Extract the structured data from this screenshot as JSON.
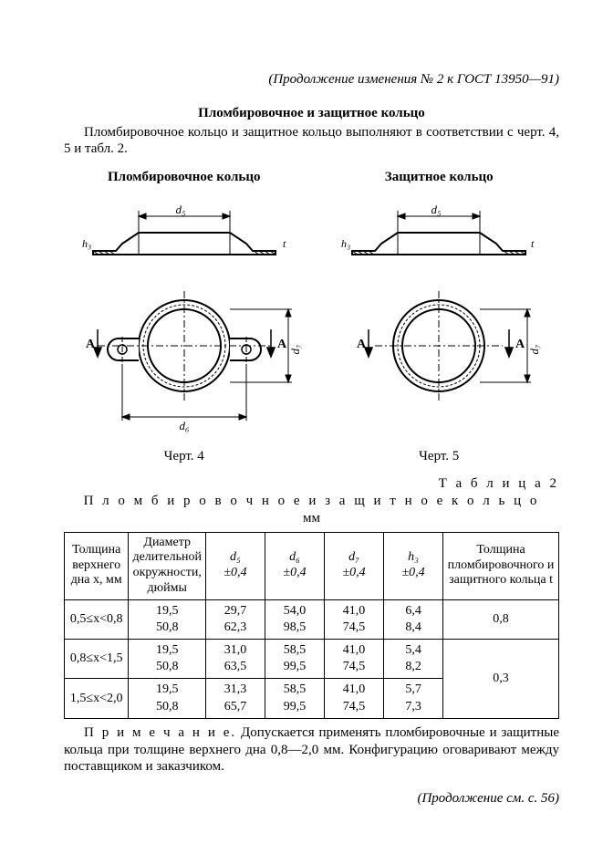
{
  "header_note": "(Продолжение изменения № 2 к ГОСТ 13950—91)",
  "section_title": "Пломбировочное и защитное кольцо",
  "intro": "Пломбировочное кольцо и защитное кольцо выполняют в соответствии с черт. 4, 5 и табл. 2.",
  "diagrams": {
    "left_title": "Пломбировочное кольцо",
    "right_title": "Защитное кольцо",
    "left_caption": "Черт. 4",
    "right_caption": "Черт. 5",
    "dim_d5": "d₅",
    "dim_d6": "d₆",
    "dim_d7": "d₇",
    "dim_h3": "h₃",
    "dim_t": "t",
    "label_A": "А",
    "colors": {
      "stroke": "#000000",
      "fill_bg": "#ffffff",
      "hatch": "#000000"
    },
    "line_width_main": 2,
    "line_width_thin": 1
  },
  "table": {
    "label": "Т а б л и ц а  2",
    "title": "П л о м б и р о в о ч н о е   и   з а щ и т н о е   к о л ь ц о",
    "unit": "мм",
    "columns": [
      "Толщина верхнего дна x, мм",
      "Диаметр делительной окружности, дюймы",
      "d₅\n±0,4",
      "d₆\n±0,4",
      "d₇\n±0,4",
      "h₃\n±0,4",
      "Толщина пломбировочного и защитного кольца t"
    ],
    "rows": [
      {
        "x": "0,5≤x<0,8",
        "dia": "19,5\n50,8",
        "d5": "29,7\n62,3",
        "d6": "54,0\n98,5",
        "d7": "41,0\n74,5",
        "h3": "6,4\n8,4",
        "t": "0,8"
      },
      {
        "x": "0,8≤x<1,5",
        "dia": "19,5\n50,8",
        "d5": "31,0\n63,5",
        "d6": "58,5\n99,5",
        "d7": "41,0\n74,5",
        "h3": "5,4\n8,2",
        "t": "0,3"
      },
      {
        "x": "1,5≤x<2,0",
        "dia": "19,5\n50,8",
        "d5": "31,3\n65,7",
        "d6": "58,5\n99,5",
        "d7": "41,0\n74,5",
        "h3": "5,7\n7,3",
        "t": ""
      }
    ]
  },
  "note_prefix": "П р и м е ч а н и е.",
  "note_body": " Допускается применять пломбировочные и защитные кольца при толщине верхнего дна 0,8—2,0 мм. Конфигурацию оговаривают между поставщиком и заказчиком.",
  "footer_note": "(Продолжение см. с. 56)"
}
